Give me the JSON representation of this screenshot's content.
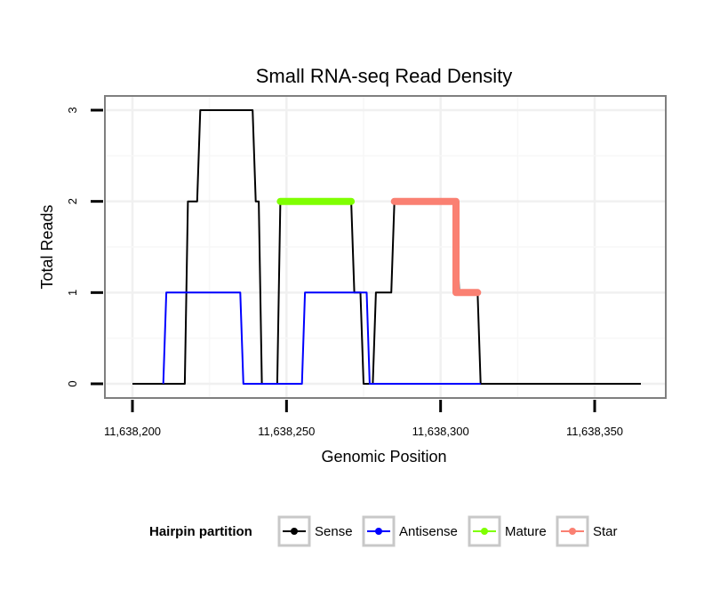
{
  "chart_data": {
    "type": "line",
    "title": "Small RNA-seq Read Density",
    "xlabel": "Genomic Position",
    "ylabel": "Total Reads",
    "xlim": [
      11638195,
      11638372
    ],
    "ylim": [
      -0.15,
      3.15
    ],
    "x_ticks": [
      11638200,
      11638250,
      11638300,
      11638350
    ],
    "x_tick_labels": [
      "11,638,200",
      "11,638,250",
      "11,638,300",
      "11,638,350"
    ],
    "y_ticks": [
      0,
      1,
      2,
      3
    ],
    "y_tick_labels": [
      "0",
      "1",
      "2",
      "3"
    ],
    "grid": true,
    "legend": {
      "title": "Hairpin partition",
      "position": "bottom",
      "entries": [
        {
          "name": "Sense",
          "color": "#000000"
        },
        {
          "name": "Antisense",
          "color": "#0000ff"
        },
        {
          "name": "Mature",
          "color": "#7fff00"
        },
        {
          "name": "Star",
          "color": "#fa8072"
        }
      ]
    },
    "series": [
      {
        "name": "Sense",
        "color": "#000000",
        "width": 2,
        "points": [
          [
            11638200,
            0
          ],
          [
            11638217,
            0
          ],
          [
            11638218,
            2
          ],
          [
            11638221,
            2
          ],
          [
            11638222,
            3
          ],
          [
            11638239,
            3
          ],
          [
            11638240,
            2
          ],
          [
            11638241,
            2
          ],
          [
            11638242,
            0
          ],
          [
            11638247,
            0
          ],
          [
            11638248,
            2
          ],
          [
            11638271,
            2
          ],
          [
            11638272,
            1
          ],
          [
            11638274,
            1
          ],
          [
            11638275,
            0
          ],
          [
            11638278,
            0
          ],
          [
            11638279,
            1
          ],
          [
            11638284,
            1
          ],
          [
            11638285,
            2
          ],
          [
            11638305,
            2
          ],
          [
            11638306,
            1
          ],
          [
            11638312,
            1
          ],
          [
            11638313,
            0
          ],
          [
            11638365,
            0
          ]
        ]
      },
      {
        "name": "Antisense",
        "color": "#0000ff",
        "width": 2,
        "points": [
          [
            11638210,
            0
          ],
          [
            11638211,
            1
          ],
          [
            11638235,
            1
          ],
          [
            11638236,
            0
          ],
          [
            11638255,
            0
          ],
          [
            11638256,
            1
          ],
          [
            11638276,
            1
          ],
          [
            11638277,
            0
          ],
          [
            11638313,
            0
          ]
        ]
      },
      {
        "name": "Mature",
        "color": "#7fff00",
        "width": 8,
        "points": [
          [
            11638248,
            2
          ],
          [
            11638271,
            2
          ]
        ]
      },
      {
        "name": "Star",
        "color": "#fa8072",
        "width": 8,
        "points": [
          [
            11638285,
            2
          ],
          [
            11638305,
            2
          ],
          [
            11638305,
            1
          ],
          [
            11638312,
            1
          ]
        ]
      }
    ]
  }
}
